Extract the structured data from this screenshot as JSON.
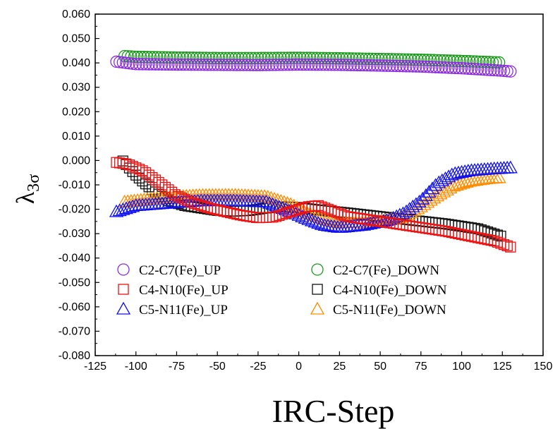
{
  "chart_data": {
    "type": "scatter",
    "xlabel": "IRC-Step",
    "ylabel": "λ",
    "ylabel_sub": "3σ",
    "xlim": [
      -125,
      150
    ],
    "ylim": [
      -0.08,
      0.06
    ],
    "xticks": [
      "-125",
      "-100",
      "-75",
      "-50",
      "-25",
      "0",
      "25",
      "50",
      "75",
      "100",
      "125",
      "150"
    ],
    "yticks": [
      "-0.080",
      "-0.070",
      "-0.060",
      "-0.050",
      "-0.040",
      "-0.030",
      "-0.020",
      "-0.010",
      "0.000",
      "0.010",
      "0.020",
      "0.030",
      "0.040",
      "0.050",
      "0.060"
    ],
    "grid": false,
    "legend_position": "bottom-center",
    "series": [
      {
        "name": "C2-C7(Fe)_UP",
        "marker": "circle",
        "color": "#8b2be2",
        "x": [
          -112,
          -100,
          -75,
          -50,
          -25,
          0,
          25,
          50,
          75,
          100,
          125,
          130
        ],
        "y": [
          0.0405,
          0.0395,
          0.0393,
          0.0392,
          0.0391,
          0.0393,
          0.0392,
          0.0389,
          0.0385,
          0.0378,
          0.0368,
          0.0365
        ]
      },
      {
        "name": "C2-C7(Fe)_DOWN",
        "marker": "circle",
        "color": "#1a9a1a",
        "x": [
          -107,
          -100,
          -75,
          -50,
          -25,
          0,
          25,
          50,
          75,
          100,
          123
        ],
        "y": [
          0.0428,
          0.0425,
          0.0422,
          0.042,
          0.042,
          0.0421,
          0.0419,
          0.0416,
          0.0413,
          0.0408,
          0.0402
        ]
      },
      {
        "name": "C4-N10(Fe)_UP",
        "marker": "square",
        "color": "#ee1111",
        "x": [
          -112,
          -105,
          -95,
          -85,
          -75,
          -65,
          -55,
          -45,
          -35,
          -25,
          -15,
          -5,
          5,
          12,
          20,
          30,
          45,
          60,
          75,
          90,
          105,
          120,
          130
        ],
        "y": [
          -0.0008,
          -0.0015,
          -0.0045,
          -0.0095,
          -0.0145,
          -0.0175,
          -0.0195,
          -0.021,
          -0.0225,
          -0.0235,
          -0.0232,
          -0.021,
          -0.019,
          -0.0185,
          -0.0205,
          -0.023,
          -0.0245,
          -0.026,
          -0.0275,
          -0.029,
          -0.031,
          -0.033,
          -0.0355
        ]
      },
      {
        "name": "C4-N10(Fe)_DOWN",
        "marker": "square",
        "color": "#111111",
        "x": [
          -108,
          -100,
          -90,
          -80,
          -70,
          -60,
          -50,
          -40,
          -30,
          -20,
          -10,
          0,
          15,
          30,
          50,
          70,
          90,
          110,
          124
        ],
        "y": [
          -0.0002,
          -0.006,
          -0.012,
          -0.0165,
          -0.0185,
          -0.0195,
          -0.0205,
          -0.0208,
          -0.0205,
          -0.0195,
          -0.019,
          -0.0193,
          -0.0205,
          -0.0215,
          -0.023,
          -0.0245,
          -0.026,
          -0.028,
          -0.031
        ]
      },
      {
        "name": "C5-N11(Fe)_UP",
        "marker": "triangle",
        "color": "#1111ee",
        "x": [
          -112,
          -100,
          -80,
          -60,
          -40,
          -20,
          -5,
          5,
          15,
          25,
          40,
          55,
          65,
          75,
          85,
          95,
          105,
          118,
          130
        ],
        "y": [
          -0.021,
          -0.0185,
          -0.0175,
          -0.0165,
          -0.0165,
          -0.017,
          -0.021,
          -0.024,
          -0.0265,
          -0.0275,
          -0.0265,
          -0.0245,
          -0.0215,
          -0.0165,
          -0.0095,
          -0.0055,
          -0.0042,
          -0.0035,
          -0.003
        ]
      },
      {
        "name": "C5-N11(Fe)_DOWN",
        "marker": "triangle",
        "color": "#ff8c00",
        "x": [
          -107,
          -100,
          -80,
          -60,
          -40,
          -20,
          -5,
          5,
          15,
          25,
          40,
          55,
          65,
          75,
          85,
          95,
          105,
          115,
          124
        ],
        "y": [
          -0.017,
          -0.0165,
          -0.015,
          -0.0143,
          -0.0142,
          -0.0148,
          -0.018,
          -0.0215,
          -0.024,
          -0.0255,
          -0.0255,
          -0.0245,
          -0.023,
          -0.019,
          -0.0145,
          -0.0105,
          -0.0085,
          -0.0075,
          -0.007
        ]
      }
    ]
  }
}
